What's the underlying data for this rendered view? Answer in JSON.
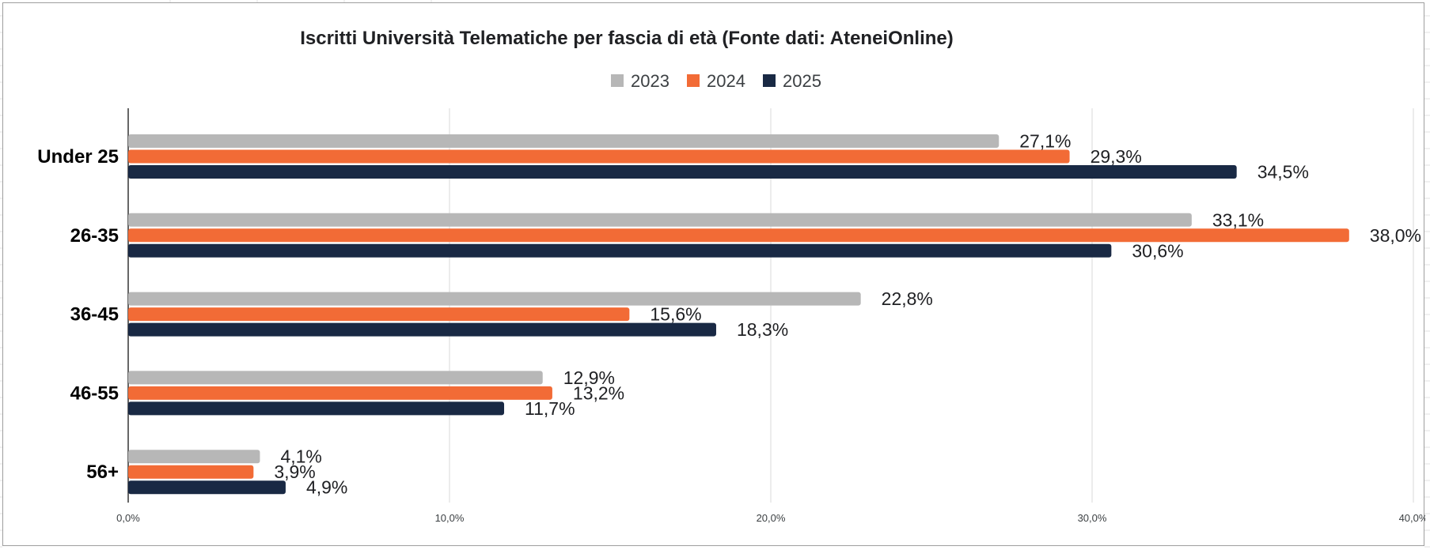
{
  "colors": {
    "2023": "#b7b7b7",
    "2024": "#f26b36",
    "2025": "#192944",
    "grid": "#d9d9d9",
    "axis": "#333333"
  },
  "chart_data": {
    "type": "bar",
    "orientation": "horizontal",
    "title": "Iscritti Università Telematiche per fascia di età (Fonte dati: AteneiOnline)",
    "legend_position": "top",
    "categories": [
      "Under 25",
      "26-35",
      "36-45",
      "46-55",
      "56+"
    ],
    "series": [
      {
        "name": "2023",
        "values": [
          27.1,
          33.1,
          22.8,
          12.9,
          4.1
        ],
        "labels": [
          "27,1%",
          "33,1%",
          "22,8%",
          "12,9%",
          "4,1%"
        ]
      },
      {
        "name": "2024",
        "values": [
          29.3,
          38.0,
          15.6,
          13.2,
          3.9
        ],
        "labels": [
          "29,3%",
          "38,0%",
          "15,6%",
          "13,2%",
          "3,9%"
        ]
      },
      {
        "name": "2025",
        "values": [
          34.5,
          30.6,
          18.3,
          11.7,
          4.9
        ],
        "labels": [
          "34,5%",
          "30,6%",
          "18,3%",
          "11,7%",
          "4,9%"
        ]
      }
    ],
    "xlim": [
      0,
      40
    ],
    "xticks": [
      0,
      10,
      20,
      30,
      40
    ],
    "xtick_labels": [
      "0,0%",
      "10,0%",
      "20,0%",
      "30,0%",
      "40,0%"
    ],
    "grid": true
  }
}
